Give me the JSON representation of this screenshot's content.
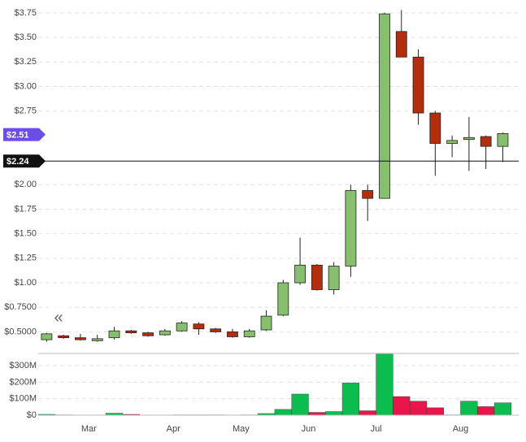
{
  "chart_data": [
    {
      "type": "candlestick",
      "categories": [
        null,
        null,
        null,
        "Mar",
        null,
        null,
        null,
        null,
        "Apr",
        null,
        null,
        null,
        "May",
        null,
        null,
        null,
        "Jun",
        null,
        null,
        null,
        "Jul",
        null,
        null,
        null,
        null,
        "Aug",
        null,
        null
      ],
      "open": [
        0.42,
        0.46,
        0.44,
        0.41,
        0.44,
        0.51,
        0.49,
        0.47,
        0.51,
        0.58,
        0.53,
        0.5,
        0.45,
        0.52,
        0.67,
        1.0,
        1.18,
        0.93,
        1.17,
        1.94,
        1.86,
        3.56,
        3.3,
        2.73,
        2.42,
        2.46,
        2.49,
        2.39
      ],
      "high": [
        0.49,
        0.47,
        0.48,
        0.47,
        0.55,
        0.52,
        0.5,
        0.53,
        0.61,
        0.6,
        0.54,
        0.53,
        0.53,
        0.72,
        1.03,
        1.46,
        1.19,
        1.21,
        2.0,
        2.0,
        3.75,
        3.78,
        3.38,
        2.75,
        2.5,
        2.69,
        2.5,
        2.53
      ],
      "low": [
        0.4,
        0.43,
        0.41,
        0.4,
        0.42,
        0.48,
        0.45,
        0.46,
        0.5,
        0.47,
        0.49,
        0.44,
        0.44,
        0.51,
        0.66,
        0.98,
        0.92,
        0.88,
        1.06,
        1.63,
        1.86,
        3.3,
        2.61,
        2.09,
        2.28,
        2.14,
        2.16,
        2.23
      ],
      "close": [
        0.48,
        0.44,
        0.42,
        0.43,
        0.51,
        0.49,
        0.46,
        0.51,
        0.59,
        0.53,
        0.5,
        0.45,
        0.51,
        0.66,
        1.0,
        1.18,
        0.93,
        1.17,
        1.94,
        1.86,
        3.74,
        3.3,
        2.73,
        2.42,
        2.45,
        2.48,
        2.39,
        2.52
      ],
      "up_color": "#86c06c",
      "down_color": "#b52e0c",
      "ylim": [
        0.28,
        3.84
      ],
      "yticks": [
        {
          "value": 3.75,
          "label": "$3.75"
        },
        {
          "value": 3.5,
          "label": "$3.50"
        },
        {
          "value": 3.25,
          "label": "$3.25"
        },
        {
          "value": 3.0,
          "label": "$3.00"
        },
        {
          "value": 2.75,
          "label": "$2.75"
        },
        {
          "value": 2.0,
          "label": "$2.00"
        },
        {
          "value": 1.75,
          "label": "$1.75"
        },
        {
          "value": 1.5,
          "label": "$1.50"
        },
        {
          "value": 1.25,
          "label": "$1.25"
        },
        {
          "value": 1.0,
          "label": "$1.00"
        },
        {
          "value": 0.75,
          "label": "$0.7500"
        },
        {
          "value": 0.5,
          "label": "$0.5000"
        }
      ],
      "grid": true,
      "price_markers": [
        {
          "value": 2.51,
          "label": "$2.51",
          "color": "#6c4de6"
        },
        {
          "value": 2.24,
          "label": "$2.24",
          "color": "#111111"
        }
      ]
    },
    {
      "type": "bar",
      "values": [
        5000000,
        2000000,
        1000000,
        1000000,
        12000000,
        5000000,
        1000000,
        1000000,
        2000000,
        2000000,
        2000000,
        1000000,
        2000000,
        10000000,
        35000000,
        128000000,
        17000000,
        22000000,
        195000000,
        27000000,
        374000000,
        113000000,
        85000000,
        45000000,
        2000000,
        85000000,
        52000000,
        75000000
      ],
      "colors": [
        "#0bbd4e",
        "#e8164a",
        "#e8164a",
        "#0bbd4e",
        "#0bbd4e",
        "#e8164a",
        "#e8164a",
        "#0bbd4e",
        "#0bbd4e",
        "#e8164a",
        "#e8164a",
        "#e8164a",
        "#0bbd4e",
        "#0bbd4e",
        "#0bbd4e",
        "#0bbd4e",
        "#e8164a",
        "#0bbd4e",
        "#0bbd4e",
        "#e8164a",
        "#0bbd4e",
        "#e8164a",
        "#e8164a",
        "#e8164a",
        "#0bbd4e",
        "#0bbd4e",
        "#e8164a",
        "#0bbd4e"
      ],
      "ylim": [
        0,
        374000000
      ],
      "yticks": [
        {
          "value": 300000000,
          "label": "$300M"
        },
        {
          "value": 200000000,
          "label": "$200M"
        },
        {
          "value": 100000000,
          "label": "$100M"
        },
        {
          "value": 0,
          "label": "$0"
        }
      ]
    }
  ],
  "controls": {
    "collapse": "«"
  }
}
